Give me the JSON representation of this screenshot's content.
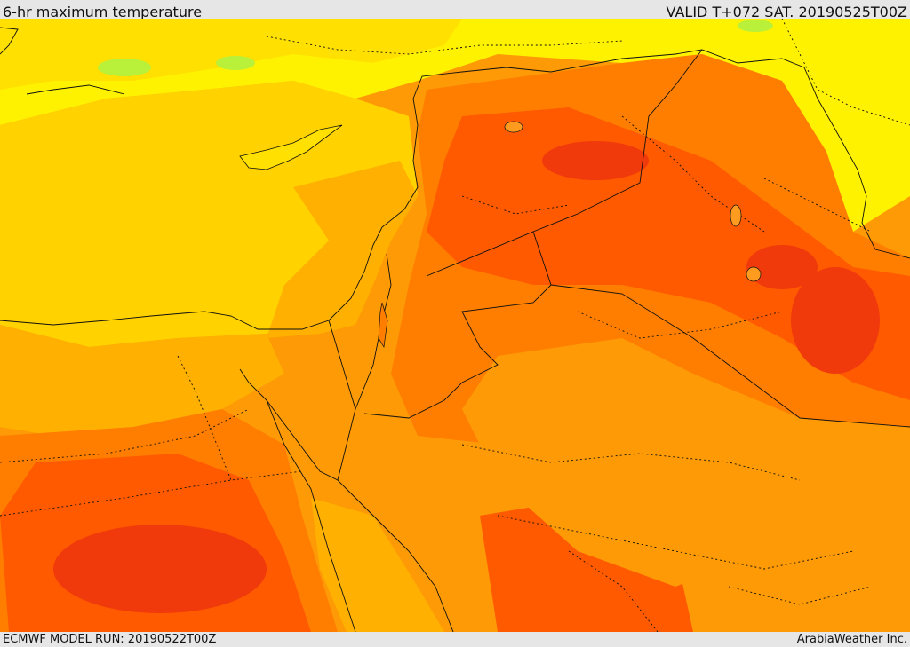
{
  "header": {
    "title": "6-hr maximum temperature",
    "valid_time": "VALID T+072 SAT. 20190525T00Z"
  },
  "footer": {
    "model_run": "ECMWF MODEL RUN: 20190522T00Z",
    "provider": "ArabiaWeather Inc."
  },
  "colors": {
    "cool_green": "#b8f03a",
    "pale_yellow": "#fff200",
    "yellow": "#ffe000",
    "gold": "#ffd200",
    "amber": "#ffb000",
    "orange": "#fd9a06",
    "dark_orange": "#ff7e00",
    "red_orange": "#ff5a00",
    "red": "#f13a0c",
    "border": "#111111"
  }
}
